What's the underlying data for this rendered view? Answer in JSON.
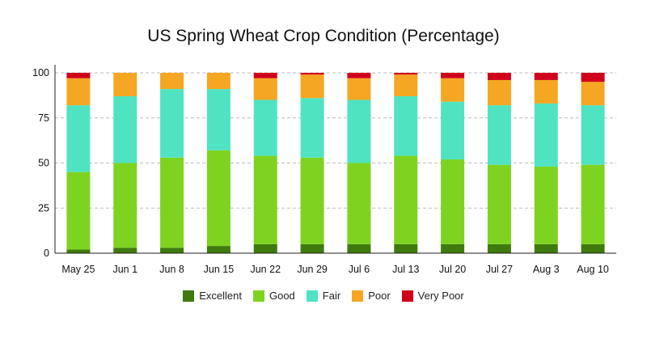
{
  "chart_data": {
    "type": "bar",
    "stacked": true,
    "title": "US Spring Wheat Crop Condition (Percentage)",
    "xlabel": "",
    "ylabel": "",
    "ylim": [
      0,
      100
    ],
    "yticks": [
      0,
      25,
      50,
      75,
      100
    ],
    "grid": "horizontal dashed",
    "legend_position": "bottom-center",
    "categories": [
      "May 25",
      "Jun 1",
      "Jun 8",
      "Jun 15",
      "Jun 22",
      "Jun 29",
      "Jul 6",
      "Jul 13",
      "Jul 20",
      "Jul 27",
      "Aug 3",
      "Aug 10"
    ],
    "series": [
      {
        "name": "Excellent",
        "color": "#3f7a0e",
        "values": [
          2,
          3,
          3,
          4,
          5,
          5,
          5,
          5,
          5,
          5,
          5,
          5
        ]
      },
      {
        "name": "Good",
        "color": "#7ed321",
        "values": [
          43,
          47,
          50,
          53,
          49,
          48,
          45,
          49,
          47,
          44,
          43,
          44
        ]
      },
      {
        "name": "Fair",
        "color": "#50e3c2",
        "values": [
          37,
          37,
          38,
          34,
          31,
          33,
          35,
          33,
          32,
          33,
          35,
          33
        ]
      },
      {
        "name": "Poor",
        "color": "#f5a623",
        "values": [
          15,
          13,
          9,
          9,
          12,
          13,
          12,
          12,
          13,
          14,
          13,
          13
        ]
      },
      {
        "name": "Very Poor",
        "color": "#d0021b",
        "values": [
          3,
          0,
          0,
          0,
          3,
          1,
          3,
          1,
          3,
          4,
          4,
          5
        ]
      }
    ]
  }
}
